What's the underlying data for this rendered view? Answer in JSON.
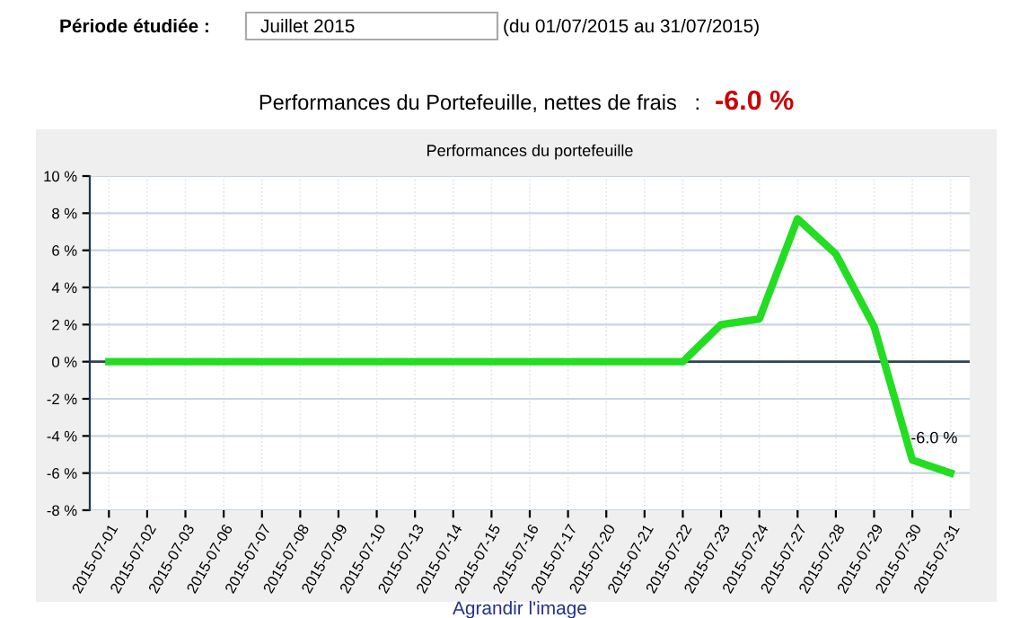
{
  "chart_data": {
    "type": "line",
    "title": "Performances du portefeuille",
    "categories": [
      "2015-07-01",
      "2015-07-02",
      "2015-07-03",
      "2015-07-06",
      "2015-07-07",
      "2015-07-08",
      "2015-07-09",
      "2015-07-10",
      "2015-07-13",
      "2015-07-14",
      "2015-07-15",
      "2015-07-16",
      "2015-07-17",
      "2015-07-20",
      "2015-07-21",
      "2015-07-22",
      "2015-07-23",
      "2015-07-24",
      "2015-07-27",
      "2015-07-28",
      "2015-07-29",
      "2015-07-30",
      "2015-07-31"
    ],
    "series": [
      {
        "color": "#22dd22",
        "values": [
          0,
          0,
          0,
          0,
          0,
          0,
          0,
          0,
          0,
          0,
          0,
          0,
          0,
          0,
          0,
          0,
          2.0,
          2.3,
          7.7,
          5.8,
          1.9,
          -5.3,
          -6.0
        ]
      }
    ],
    "ylim": [
      -8,
      10
    ],
    "yticks": [
      {
        "value": -8,
        "label": "-8 %"
      },
      {
        "value": -6,
        "label": "-6 %"
      },
      {
        "value": -4,
        "label": "-4 %"
      },
      {
        "value": -2,
        "label": "-2 %"
      },
      {
        "value": 0,
        "label": "0 %"
      },
      {
        "value": 2,
        "label": "2 %"
      },
      {
        "value": 4,
        "label": "4 %"
      },
      {
        "value": 6,
        "label": "6 %"
      },
      {
        "value": 8,
        "label": "8 %"
      },
      {
        "value": 10,
        "label": "10 %"
      }
    ],
    "grid": true,
    "marker": "none",
    "line_style": "solid",
    "annotations": [
      {
        "text": "-6.0 %",
        "x": "2015-07-31",
        "y": -6.0
      },
      "Période étudiée :",
      "Juillet 2015",
      "(du 01/07/2015 au 31/07/2015)",
      "Performances du Portefeuille, nettes de frais   :",
      "-6.0 %",
      "Agrandir l'image"
    ]
  }
}
